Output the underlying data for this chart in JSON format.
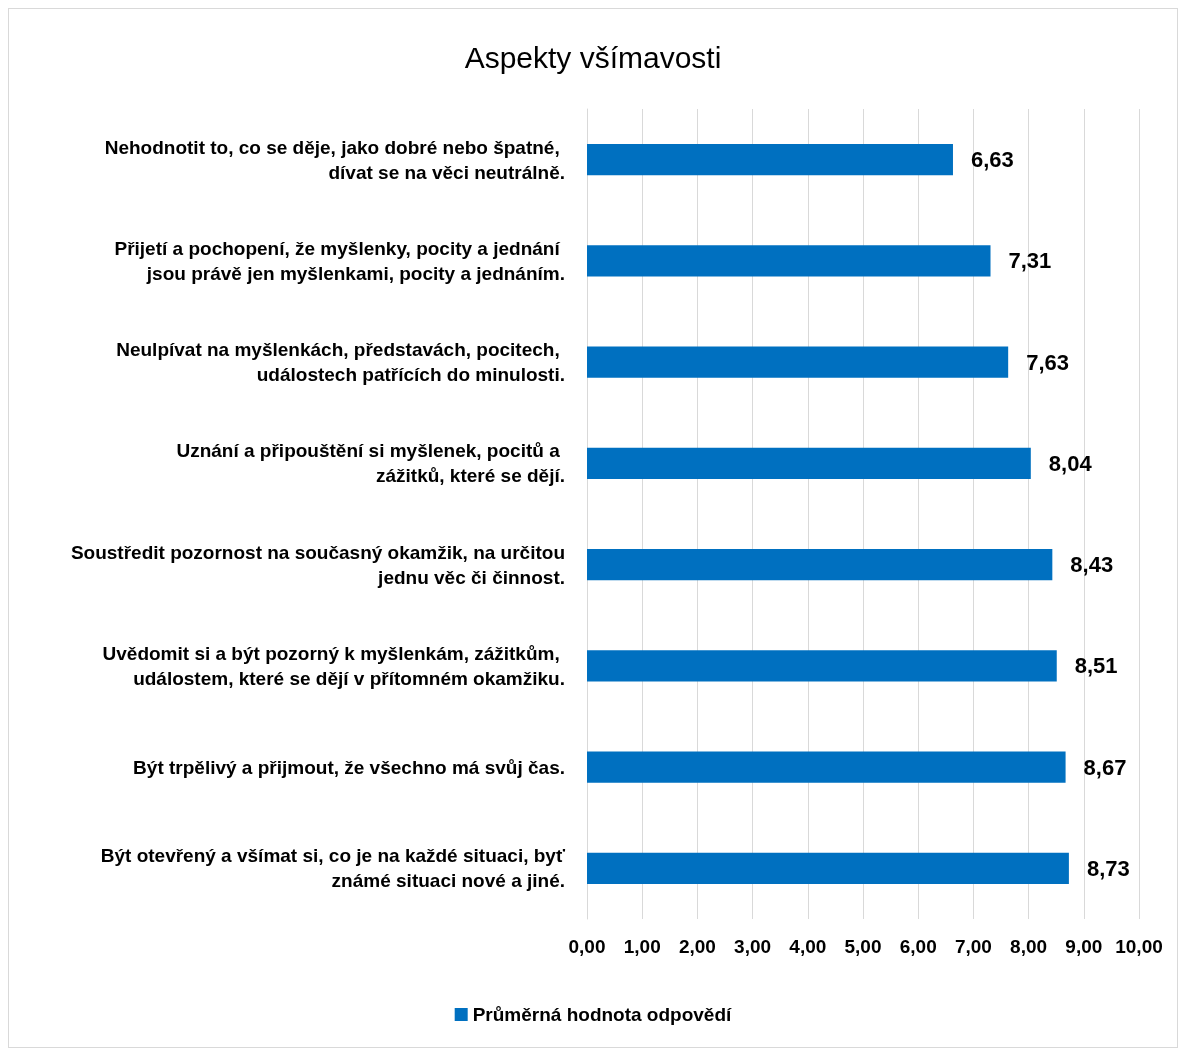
{
  "chart_data": {
    "type": "bar",
    "orientation": "horizontal",
    "title": "Aspekty všímavosti",
    "categories": [
      "Nehodnotit to, co se děje, jako dobré nebo špatné, dívat se na věci neutrálně.",
      "Přijetí a pochopení, že myšlenky, pocity a jednání jsou právě jen myšlenkami, pocity a jednáním.",
      "Neulpívat na myšlenkách, představách, pocitech, událostech patřících do minulosti.",
      "Uznání a připouštění si myšlenek, pocitů a zážitků, které se dějí.",
      "Soustředit pozornost na současný okamžik, na určitou jednu věc či činnost.",
      "Uvědomit si a být pozorný k myšlenkám, zážitkům, událostem, které se dějí v přítomném okamžiku.",
      "Být trpělivý a přijmout, že všechno má svůj čas.",
      "Být otevřený a všímat si, co je na každé situaci, byť známé situaci nové a jiné."
    ],
    "series": [
      {
        "name": "Průměrná hodnota odpovědí",
        "color": "#0070c0",
        "values": [
          6.63,
          7.31,
          7.63,
          8.04,
          8.43,
          8.51,
          8.67,
          8.73
        ],
        "value_labels": [
          "6,63",
          "7,31",
          "7,63",
          "8,04",
          "8,43",
          "8,51",
          "8,67",
          "8,73"
        ]
      }
    ],
    "xlim": [
      0,
      10
    ],
    "xticks": [
      {
        "value": 0,
        "label": "0,00"
      },
      {
        "value": 1,
        "label": "1,00"
      },
      {
        "value": 2,
        "label": "2,00"
      },
      {
        "value": 3,
        "label": "3,00"
      },
      {
        "value": 4,
        "label": "4,00"
      },
      {
        "value": 5,
        "label": "5,00"
      },
      {
        "value": 6,
        "label": "6,00"
      },
      {
        "value": 7,
        "label": "7,00"
      },
      {
        "value": 8,
        "label": "8,00"
      },
      {
        "value": 9,
        "label": "9,00"
      },
      {
        "value": 10,
        "label": "10,00"
      }
    ],
    "grid": "x",
    "legend": "bottom"
  }
}
